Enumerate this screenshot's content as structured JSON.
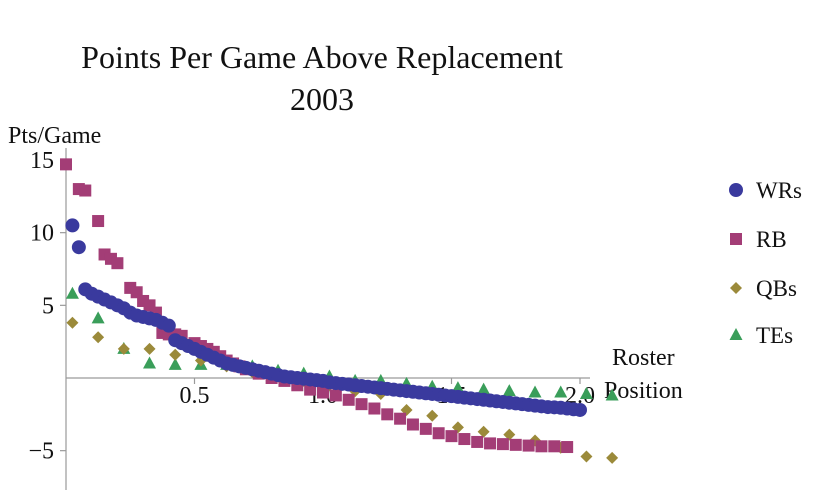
{
  "chart_data": {
    "type": "scatter",
    "title_line1": "Points Per Game Above Replacement",
    "title_line2": "2003",
    "ylabel": "Pts/Game",
    "xlabel_line1": "Roster",
    "xlabel_line2": "Position",
    "xlim": [
      -0.05,
      2.05
    ],
    "ylim": [
      -8.5,
      16
    ],
    "x_ticks": [
      {
        "v": 0.5,
        "label": "0.5"
      },
      {
        "v": 1.0,
        "label": "1.0"
      },
      {
        "v": 1.5,
        "label": "1.5"
      },
      {
        "v": 2.0,
        "label": "2.0"
      }
    ],
    "y_ticks": [
      {
        "v": 15,
        "label": "15"
      },
      {
        "v": 10,
        "label": "10"
      },
      {
        "v": 5,
        "label": "5"
      },
      {
        "v": -5,
        "label": "−5"
      }
    ],
    "legend_position": "right",
    "series": [
      {
        "name": "WRs",
        "marker": "circle",
        "color": "#3a3a9e",
        "points": [
          [
            0.025,
            10.5
          ],
          [
            0.05,
            9.0
          ],
          [
            0.075,
            6.1
          ],
          [
            0.1,
            5.8
          ],
          [
            0.125,
            5.6
          ],
          [
            0.15,
            5.4
          ],
          [
            0.175,
            5.2
          ],
          [
            0.2,
            5.0
          ],
          [
            0.225,
            4.8
          ],
          [
            0.25,
            4.5
          ],
          [
            0.275,
            4.3
          ],
          [
            0.3,
            4.2
          ],
          [
            0.325,
            4.1
          ],
          [
            0.35,
            4.0
          ],
          [
            0.375,
            3.8
          ],
          [
            0.4,
            3.6
          ],
          [
            0.425,
            2.6
          ],
          [
            0.45,
            2.4
          ],
          [
            0.475,
            2.2
          ],
          [
            0.5,
            2.0
          ],
          [
            0.525,
            1.8
          ],
          [
            0.55,
            1.6
          ],
          [
            0.575,
            1.4
          ],
          [
            0.6,
            1.2
          ],
          [
            0.625,
            1.0
          ],
          [
            0.65,
            0.9
          ],
          [
            0.675,
            0.8
          ],
          [
            0.7,
            0.7
          ],
          [
            0.725,
            0.6
          ],
          [
            0.75,
            0.5
          ],
          [
            0.775,
            0.4
          ],
          [
            0.8,
            0.3
          ],
          [
            0.825,
            0.2
          ],
          [
            0.85,
            0.1
          ],
          [
            0.875,
            0.05
          ],
          [
            0.9,
            0.0
          ],
          [
            0.925,
            -0.05
          ],
          [
            0.95,
            -0.1
          ],
          [
            0.975,
            -0.15
          ],
          [
            1.0,
            -0.2
          ],
          [
            1.025,
            -0.3
          ],
          [
            1.05,
            -0.35
          ],
          [
            1.075,
            -0.4
          ],
          [
            1.1,
            -0.45
          ],
          [
            1.125,
            -0.5
          ],
          [
            1.15,
            -0.55
          ],
          [
            1.175,
            -0.6
          ],
          [
            1.2,
            -0.65
          ],
          [
            1.225,
            -0.7
          ],
          [
            1.25,
            -0.75
          ],
          [
            1.275,
            -0.8
          ],
          [
            1.3,
            -0.85
          ],
          [
            1.325,
            -0.9
          ],
          [
            1.35,
            -0.95
          ],
          [
            1.375,
            -1.0
          ],
          [
            1.4,
            -1.05
          ],
          [
            1.425,
            -1.1
          ],
          [
            1.45,
            -1.15
          ],
          [
            1.475,
            -1.2
          ],
          [
            1.5,
            -1.25
          ],
          [
            1.525,
            -1.3
          ],
          [
            1.55,
            -1.35
          ],
          [
            1.575,
            -1.4
          ],
          [
            1.6,
            -1.45
          ],
          [
            1.625,
            -1.5
          ],
          [
            1.65,
            -1.55
          ],
          [
            1.675,
            -1.6
          ],
          [
            1.7,
            -1.65
          ],
          [
            1.725,
            -1.7
          ],
          [
            1.75,
            -1.75
          ],
          [
            1.775,
            -1.8
          ],
          [
            1.8,
            -1.85
          ],
          [
            1.825,
            -1.9
          ],
          [
            1.85,
            -1.95
          ],
          [
            1.875,
            -2.0
          ],
          [
            1.9,
            -2.02
          ],
          [
            1.925,
            -2.05
          ],
          [
            1.95,
            -2.1
          ],
          [
            1.975,
            -2.15
          ],
          [
            2.0,
            -2.2
          ]
        ]
      },
      {
        "name": "RB",
        "marker": "square",
        "color": "#a33d76",
        "points": [
          [
            0.0,
            14.7
          ],
          [
            0.05,
            13.0
          ],
          [
            0.075,
            12.9
          ],
          [
            0.125,
            10.8
          ],
          [
            0.15,
            8.5
          ],
          [
            0.175,
            8.2
          ],
          [
            0.2,
            7.9
          ],
          [
            0.25,
            6.2
          ],
          [
            0.275,
            5.9
          ],
          [
            0.3,
            5.3
          ],
          [
            0.325,
            5.0
          ],
          [
            0.35,
            4.5
          ],
          [
            0.375,
            3.1
          ],
          [
            0.4,
            3.0
          ],
          [
            0.425,
            3.0
          ],
          [
            0.45,
            2.9
          ],
          [
            0.5,
            2.4
          ],
          [
            0.525,
            2.2
          ],
          [
            0.55,
            2.0
          ],
          [
            0.575,
            1.8
          ],
          [
            0.6,
            1.5
          ],
          [
            0.625,
            1.2
          ],
          [
            0.65,
            1.0
          ],
          [
            0.675,
            0.8
          ],
          [
            0.7,
            0.6
          ],
          [
            0.75,
            0.3
          ],
          [
            0.8,
            0.0
          ],
          [
            0.85,
            -0.2
          ],
          [
            0.9,
            -0.5
          ],
          [
            0.95,
            -0.8
          ],
          [
            1.0,
            -1.0
          ],
          [
            1.05,
            -1.2
          ],
          [
            1.1,
            -1.5
          ],
          [
            1.15,
            -1.8
          ],
          [
            1.2,
            -2.1
          ],
          [
            1.25,
            -2.5
          ],
          [
            1.3,
            -2.8
          ],
          [
            1.35,
            -3.2
          ],
          [
            1.4,
            -3.5
          ],
          [
            1.45,
            -3.8
          ],
          [
            1.5,
            -4.0
          ],
          [
            1.55,
            -4.2
          ],
          [
            1.6,
            -4.4
          ],
          [
            1.65,
            -4.5
          ],
          [
            1.7,
            -4.55
          ],
          [
            1.75,
            -4.6
          ],
          [
            1.8,
            -4.65
          ],
          [
            1.85,
            -4.7
          ],
          [
            1.9,
            -4.7
          ],
          [
            1.95,
            -4.75
          ]
        ]
      },
      {
        "name": "QBs",
        "marker": "diamond",
        "color": "#9b8a3a",
        "points": [
          [
            0.025,
            3.8
          ],
          [
            0.125,
            2.8
          ],
          [
            0.225,
            2.0
          ],
          [
            0.325,
            2.0
          ],
          [
            0.425,
            1.6
          ],
          [
            0.525,
            1.2
          ],
          [
            0.625,
            0.8
          ],
          [
            0.725,
            0.4
          ],
          [
            0.825,
            0.1
          ],
          [
            0.925,
            -0.2
          ],
          [
            1.025,
            -0.5
          ],
          [
            1.125,
            -0.9
          ],
          [
            1.225,
            -1.1
          ],
          [
            1.325,
            -2.2
          ],
          [
            1.425,
            -2.6
          ],
          [
            1.525,
            -3.4
          ],
          [
            1.625,
            -3.7
          ],
          [
            1.725,
            -3.9
          ],
          [
            1.825,
            -4.3
          ],
          [
            1.925,
            -4.8
          ],
          [
            2.025,
            -5.4
          ],
          [
            2.125,
            -5.5
          ]
        ]
      },
      {
        "name": "TEs",
        "marker": "triangle",
        "color": "#3a9e5a",
        "points": [
          [
            0.025,
            5.8
          ],
          [
            0.125,
            4.1
          ],
          [
            0.225,
            2.0
          ],
          [
            0.325,
            1.0
          ],
          [
            0.425,
            0.9
          ],
          [
            0.525,
            0.9
          ],
          [
            0.625,
            0.9
          ],
          [
            0.725,
            0.8
          ],
          [
            0.825,
            0.5
          ],
          [
            0.925,
            0.3
          ],
          [
            1.025,
            0.1
          ],
          [
            1.125,
            -0.2
          ],
          [
            1.225,
            -0.2
          ],
          [
            1.325,
            -0.4
          ],
          [
            1.425,
            -0.6
          ],
          [
            1.525,
            -0.7
          ],
          [
            1.625,
            -0.8
          ],
          [
            1.725,
            -0.9
          ],
          [
            1.825,
            -1.0
          ],
          [
            1.925,
            -1.0
          ],
          [
            2.025,
            -1.1
          ],
          [
            2.125,
            -1.2
          ]
        ]
      }
    ]
  }
}
